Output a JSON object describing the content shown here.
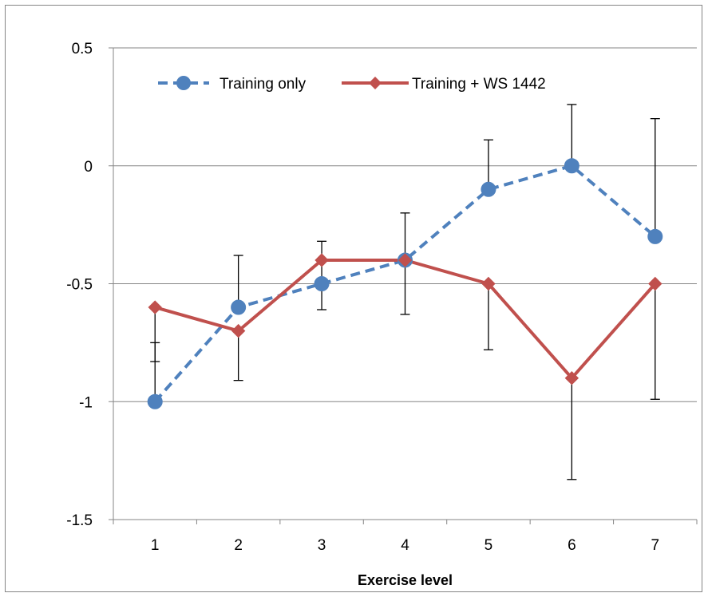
{
  "chart_data": {
    "type": "line",
    "title": "",
    "xlabel": "Exercise level",
    "ylabel": "",
    "x": [
      1,
      2,
      3,
      4,
      5,
      6,
      7
    ],
    "x_tick_labels": [
      "1",
      "2",
      "3",
      "4",
      "5",
      "6",
      "7"
    ],
    "ylim": [
      -1.5,
      0.5
    ],
    "y_ticks": [
      0.5,
      0,
      -0.5,
      -1,
      -1.5
    ],
    "y_tick_labels": [
      "0.5",
      "0",
      "-0.5",
      "-1",
      "-1.5"
    ],
    "grid": "horizontal",
    "legend": "top-left inside plot",
    "series": [
      {
        "name": "Training only",
        "values": [
          -1.0,
          -0.6,
          -0.5,
          -0.4,
          -0.1,
          0.0,
          -0.3
        ],
        "error_upper": [
          -0.75,
          -0.38,
          -0.32,
          -0.2,
          0.11,
          0.26,
          0.2
        ],
        "error_lower": [
          -1.0,
          -0.6,
          -0.61,
          -0.63,
          -0.1,
          0.0,
          -0.3
        ],
        "color": "#4F81BD",
        "line_style": "dashed",
        "marker": "circle"
      },
      {
        "name": "Training + WS 1442",
        "values": [
          -0.6,
          -0.7,
          -0.4,
          -0.4,
          -0.5,
          -0.9,
          -0.5
        ],
        "error_upper": [
          -0.6,
          -0.7,
          -0.4,
          -0.4,
          -0.5,
          -0.9,
          -0.5
        ],
        "error_lower": [
          -0.83,
          -0.91,
          -0.4,
          -0.4,
          -0.78,
          -1.33,
          -0.99
        ],
        "color": "#C0504D",
        "line_style": "solid",
        "marker": "diamond"
      }
    ]
  }
}
